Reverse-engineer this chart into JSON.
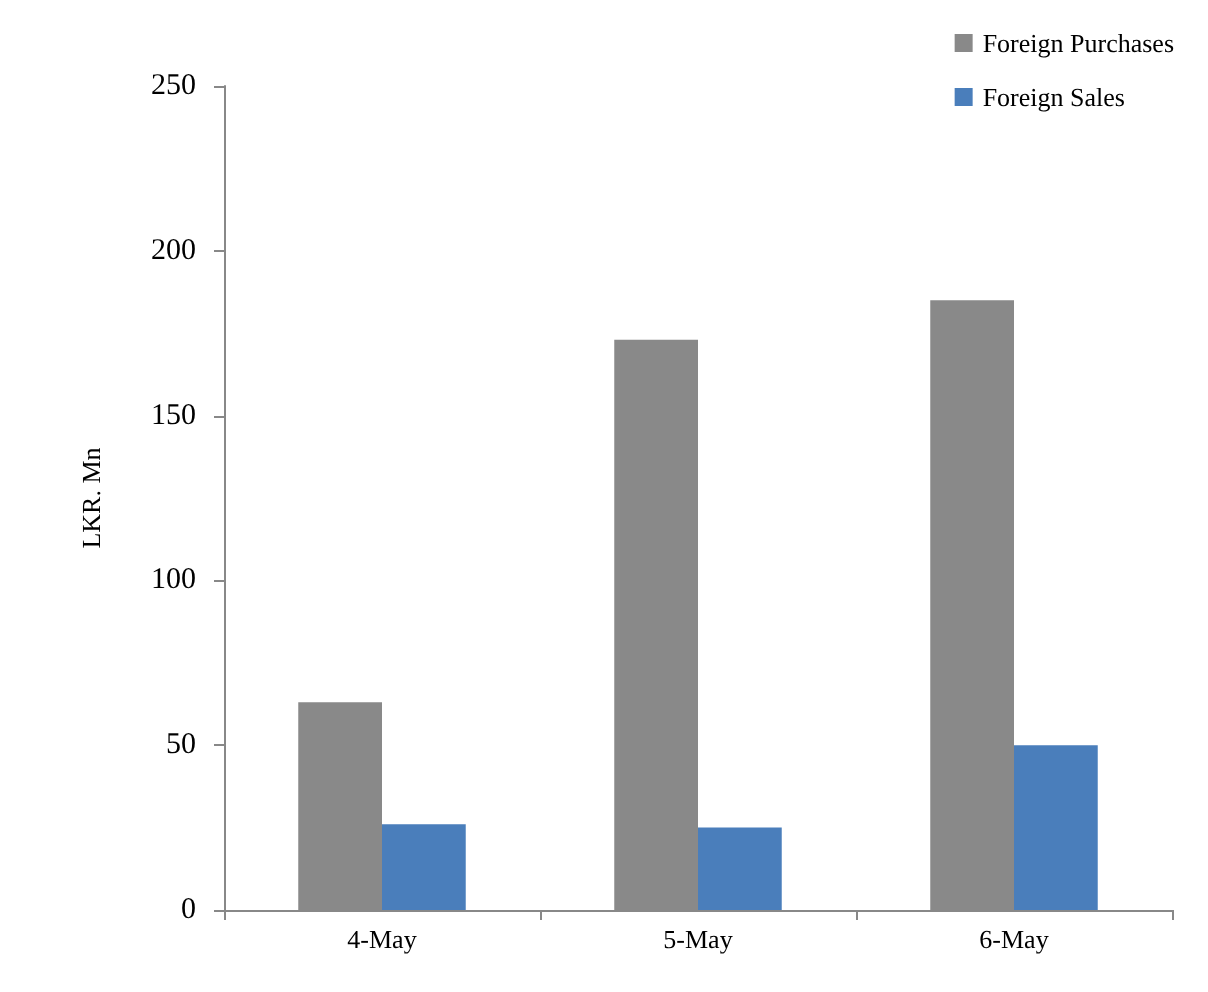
{
  "chart_data": {
    "type": "bar",
    "ylabel": "LKR. Mn",
    "categories": [
      "4-May",
      "5-May",
      "6-May"
    ],
    "series": [
      {
        "name": "Foreign Purchases",
        "color": "#898989",
        "values": [
          63,
          173,
          185
        ]
      },
      {
        "name": "Foreign Sales",
        "color": "#4a7ebb",
        "values": [
          26,
          25,
          50
        ]
      }
    ],
    "ylim": [
      0,
      250
    ],
    "yticks": [
      0,
      50,
      100,
      150,
      200,
      250
    ],
    "grid": false,
    "legend": "top right"
  }
}
